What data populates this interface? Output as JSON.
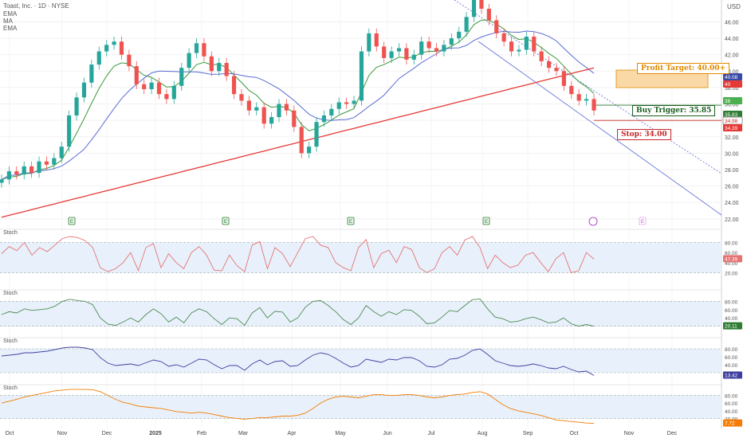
{
  "header": {
    "title": "Toast, Inc. · 1D · NYSE",
    "indicators": [
      "EMA",
      "MA",
      "EMA"
    ],
    "currency": "USD"
  },
  "annotations": {
    "profit_target": "Profit Target: 40.00+",
    "buy_trigger": "Buy Trigger: 35.85",
    "stop": "Stop: 34.00"
  },
  "price_badges": [
    {
      "value": "40.08",
      "color": "#3a4aa8"
    },
    {
      "value": "40",
      "color": "#e53935"
    },
    {
      "value": "38",
      "color": "#4caf50"
    },
    {
      "value": "35.83",
      "color": "#2e7d32"
    },
    {
      "value": "34.98",
      "color": "#ffffff"
    },
    {
      "value": "34.39",
      "color": "#e53935"
    }
  ],
  "osc_badges": [
    {
      "value": "47.39",
      "color": "#e57373"
    },
    {
      "value": "20.11",
      "color": "#2e7d32"
    },
    {
      "value": "13.42",
      "color": "#3f3f9f"
    },
    {
      "value": "7.72",
      "color": "#f57c00"
    }
  ],
  "earnings_markers": [
    "E",
    "E",
    "E",
    "E",
    "E"
  ],
  "chart_data": {
    "type": "line",
    "subtype": "candlestick",
    "y_ticks": [
      22.0,
      24.0,
      26.0,
      28.0,
      30.0,
      32.0,
      34.0,
      36.0,
      38.0,
      40.0,
      42.0,
      44.0,
      46.0
    ],
    "ylim": [
      21.5,
      47.5
    ],
    "x_ticks": [
      "Oct",
      "Nov",
      "Dec",
      "2025",
      "Feb",
      "Mar",
      "Apr",
      "May",
      "Jun",
      "Jul",
      "Aug",
      "Sep",
      "Oct",
      "Nov",
      "Dec"
    ],
    "ohlc_series": [
      26.8,
      27.8,
      27.4,
      28.4,
      27.6,
      29.0,
      28.6,
      29.4,
      30.8,
      34.6,
      36.8,
      38.6,
      40.8,
      42.4,
      43.2,
      43.6,
      42.0,
      40.6,
      38.4,
      37.8,
      38.6,
      37.2,
      36.6,
      38.2,
      40.4,
      42.2,
      43.4,
      41.8,
      40.0,
      41.0,
      39.4,
      37.2,
      36.4,
      35.2,
      35.6,
      33.6,
      34.4,
      36.0,
      35.2,
      33.2,
      30.0,
      30.8,
      33.8,
      34.6,
      35.4,
      36.2,
      36.0,
      36.4,
      42.4,
      44.6,
      43.0,
      41.6,
      42.4,
      42.8,
      41.4,
      42.0,
      43.6,
      42.8,
      42.4,
      43.2,
      44.0,
      44.8,
      46.6,
      48.8,
      47.6,
      46.2,
      44.6,
      43.6,
      42.4,
      42.6,
      44.2,
      42.4,
      41.2,
      40.4,
      40.0,
      38.2,
      37.2,
      36.4,
      36.6,
      35.2
    ],
    "osc_ylim": [
      0,
      100
    ],
    "osc_ticks": [
      20,
      40,
      60,
      80,
      100
    ],
    "oscillators": [
      {
        "name": "Stoch",
        "values": [
          58,
          72,
          64,
          80,
          55,
          70,
          62,
          75,
          88,
          92,
          90,
          84,
          70,
          30,
          22,
          28,
          40,
          60,
          24,
          70,
          78,
          30,
          58,
          40,
          28,
          60,
          72,
          55,
          25,
          24,
          55,
          34,
          22,
          75,
          82,
          28,
          70,
          58,
          32,
          60,
          88,
          92,
          75,
          70,
          40,
          30,
          24,
          70,
          86,
          30,
          58,
          65,
          40,
          72,
          66,
          30,
          20,
          28,
          60,
          72,
          55,
          85,
          92,
          70,
          28,
          55,
          40,
          30,
          35,
          55,
          60,
          40,
          22,
          48,
          60,
          20,
          24,
          60,
          47
        ],
        "color": "#e57373"
      },
      {
        "name": "Stoch",
        "values": [
          48,
          55,
          52,
          62,
          58,
          60,
          62,
          68,
          80,
          85,
          82,
          80,
          72,
          40,
          25,
          22,
          30,
          40,
          30,
          48,
          62,
          50,
          30,
          42,
          28,
          52,
          62,
          55,
          38,
          24,
          40,
          38,
          22,
          52,
          65,
          40,
          56,
          54,
          30,
          40,
          66,
          80,
          82,
          70,
          55,
          36,
          24,
          40,
          70,
          55,
          44,
          55,
          48,
          60,
          58,
          44,
          26,
          28,
          42,
          58,
          55,
          70,
          84,
          86,
          62,
          42,
          38,
          30,
          32,
          38,
          42,
          36,
          28,
          30,
          40,
          26,
          20,
          24,
          20
        ],
        "color": "#4e8a52"
      },
      {
        "name": "Stoch",
        "values": [
          62,
          64,
          66,
          70,
          70,
          72,
          74,
          78,
          82,
          84,
          84,
          82,
          78,
          58,
          44,
          38,
          40,
          42,
          38,
          45,
          52,
          48,
          36,
          40,
          34,
          44,
          54,
          52,
          40,
          30,
          38,
          38,
          26,
          42,
          52,
          40,
          48,
          50,
          36,
          38,
          52,
          64,
          70,
          66,
          56,
          44,
          34,
          38,
          54,
          50,
          46,
          54,
          52,
          58,
          58,
          50,
          36,
          34,
          40,
          54,
          56,
          64,
          76,
          80,
          66,
          50,
          44,
          38,
          36,
          38,
          42,
          38,
          32,
          30,
          36,
          28,
          22,
          24,
          13
        ],
        "color": "#3f3f9f"
      },
      {
        "name": "Stoch",
        "values": [
          60,
          65,
          70,
          76,
          80,
          84,
          88,
          92,
          94,
          96,
          96,
          96,
          95,
          90,
          80,
          70,
          62,
          58,
          52,
          50,
          48,
          46,
          42,
          38,
          36,
          34,
          36,
          34,
          30,
          26,
          22,
          20,
          18,
          20,
          22,
          22,
          24,
          26,
          26,
          28,
          34,
          46,
          60,
          70,
          76,
          78,
          76,
          74,
          78,
          82,
          82,
          80,
          80,
          82,
          82,
          80,
          76,
          74,
          76,
          80,
          82,
          84,
          88,
          90,
          84,
          70,
          56,
          46,
          40,
          36,
          32,
          28,
          22,
          16,
          14,
          12,
          10,
          8,
          7
        ],
        "color": "#f57c00"
      }
    ]
  }
}
